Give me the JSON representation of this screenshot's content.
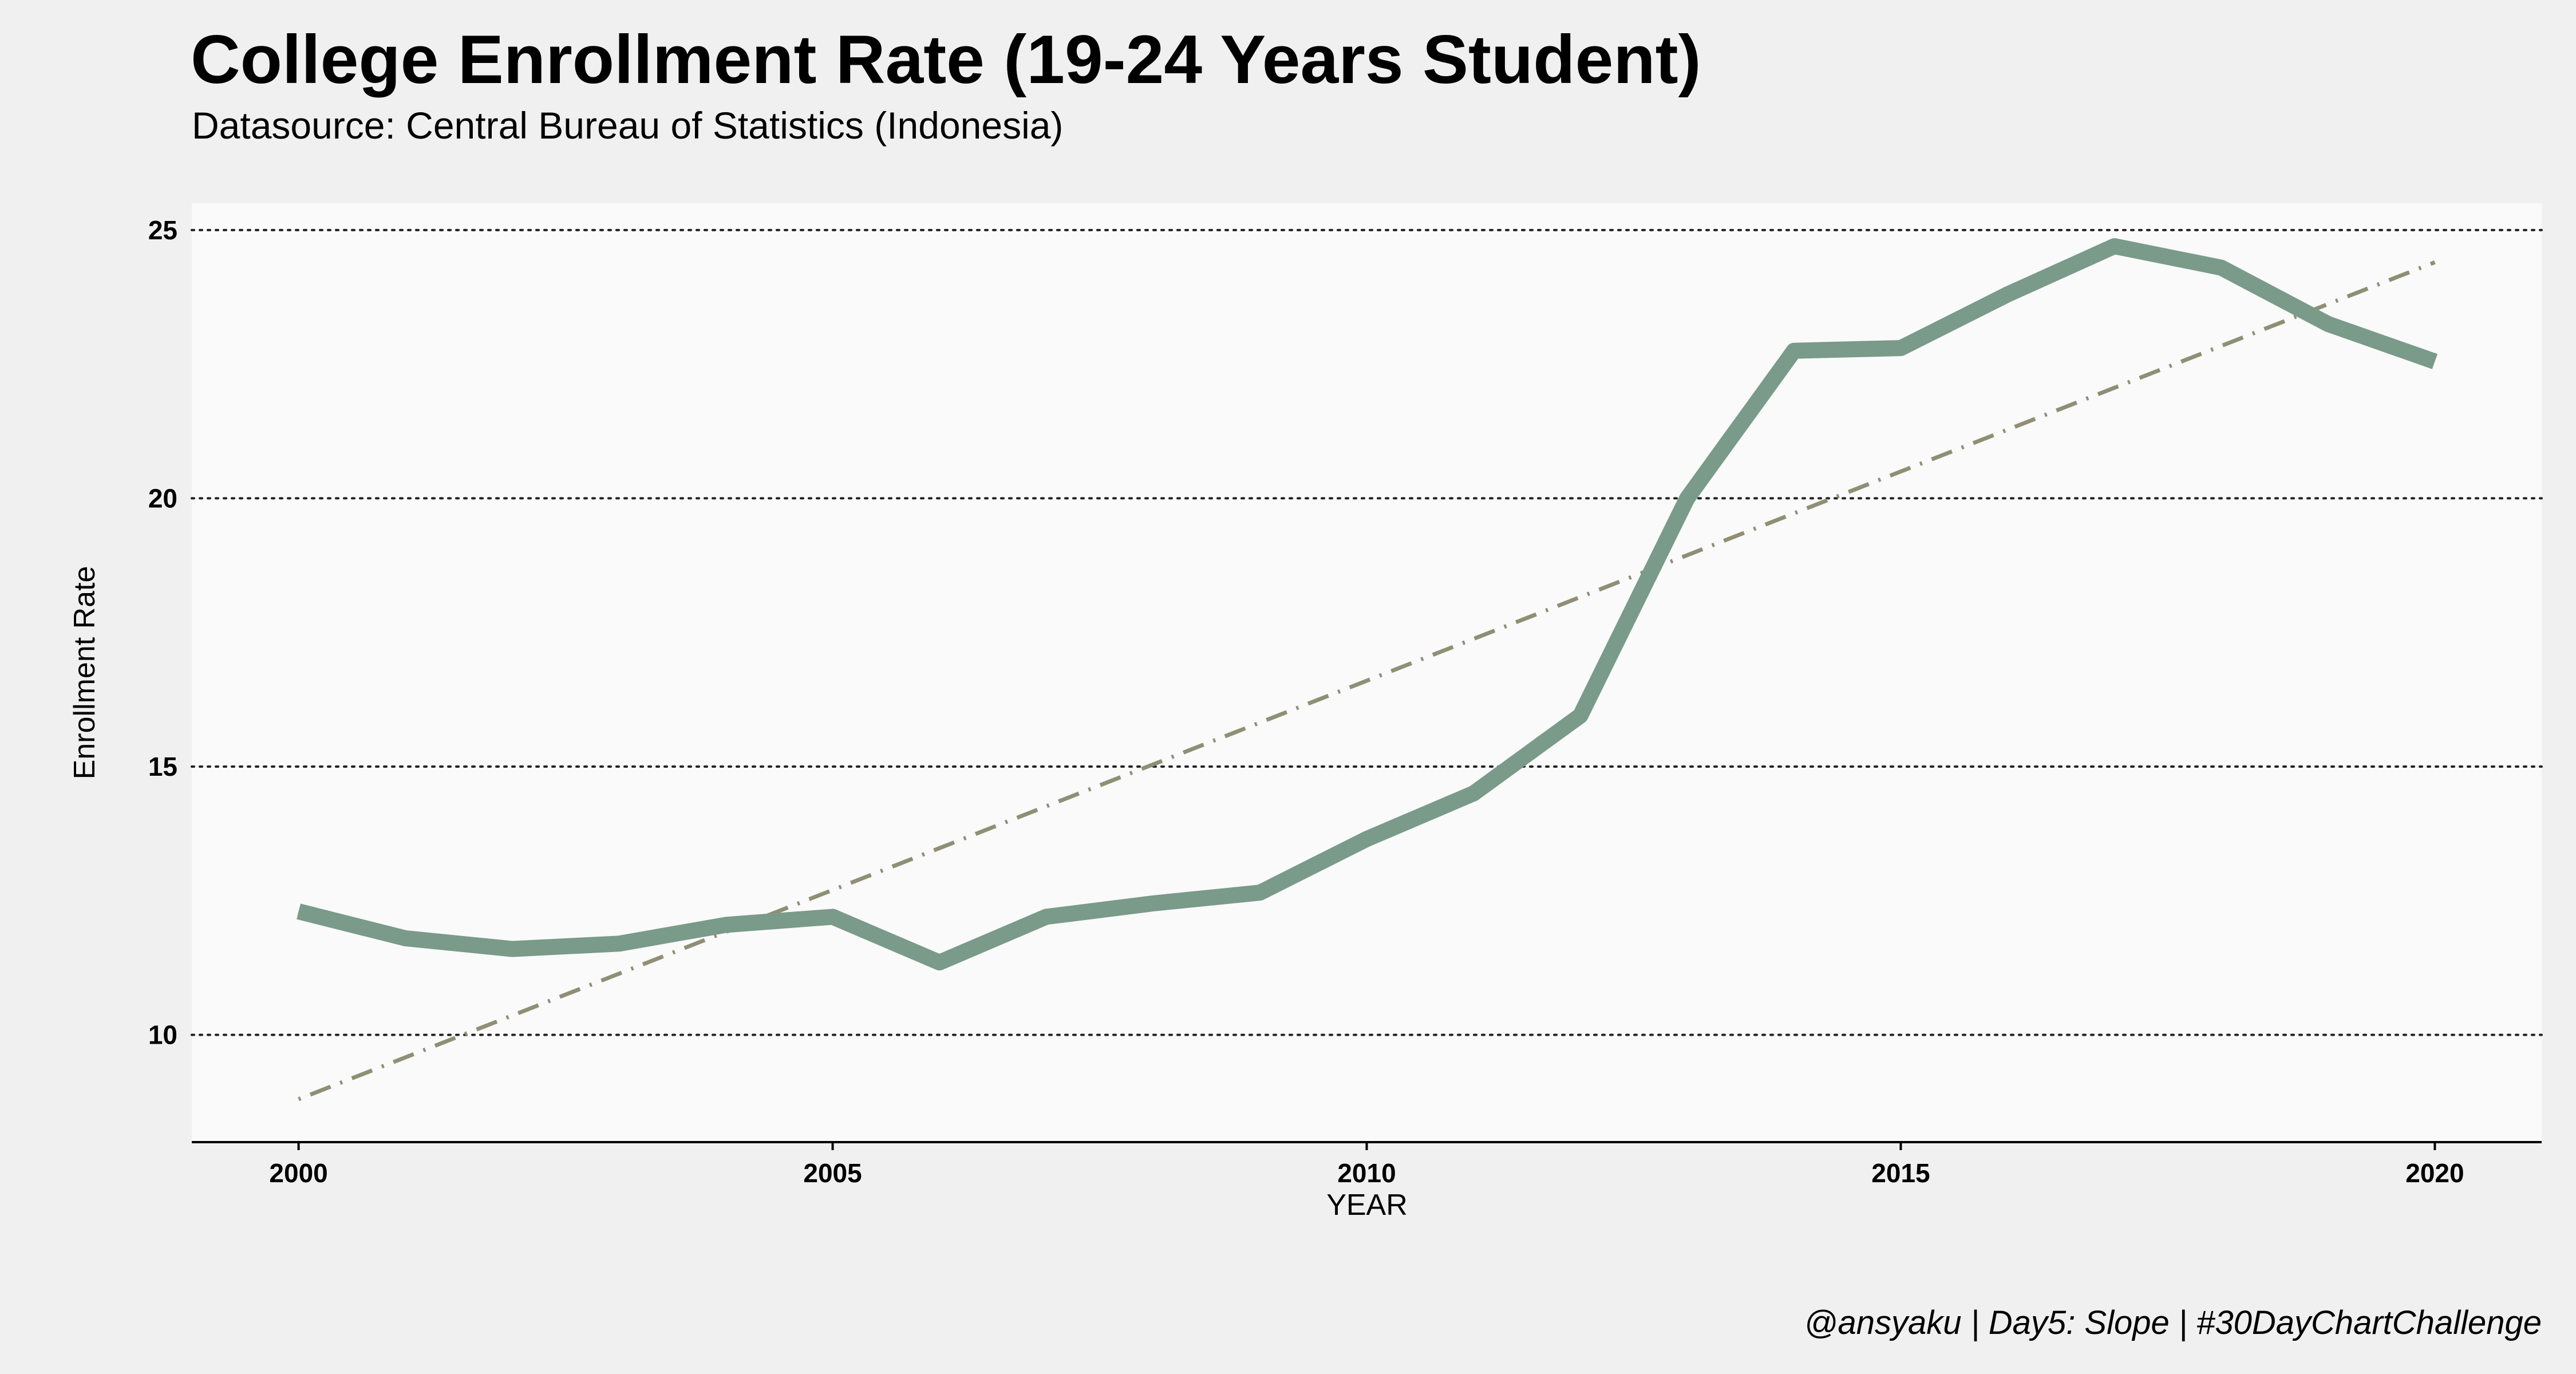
{
  "chart_data": {
    "type": "line",
    "title": "College Enrollment Rate (19-24 Years Student)",
    "subtitle": "Datasource: Central Bureau of Statistics (Indonesia)",
    "xlabel": "YEAR",
    "ylabel": "Enrollment Rate",
    "caption": "@ansyaku | Day5: Slope | #30DayChartChallenge",
    "x": [
      2000,
      2001,
      2002,
      2003,
      2004,
      2005,
      2006,
      2007,
      2008,
      2009,
      2010,
      2011,
      2012,
      2013,
      2014,
      2015,
      2016,
      2017,
      2018,
      2019,
      2020
    ],
    "series": [
      {
        "values": [
          12.3,
          11.8,
          11.6,
          11.7,
          12.05,
          12.2,
          11.35,
          12.2,
          12.45,
          12.65,
          13.65,
          14.5,
          15.95,
          20.0,
          22.75,
          22.8,
          23.8,
          24.7,
          24.3,
          23.25,
          22.55
        ],
        "color": "#7a9a8a"
      }
    ],
    "trendline": {
      "style": "dotdash",
      "color": "#8f8f75",
      "start": [
        2000,
        8.8
      ],
      "end": [
        2020,
        24.4
      ]
    },
    "xlim": [
      1999,
      2021
    ],
    "ylim": [
      8,
      25.5
    ],
    "xticks": [
      2000,
      2005,
      2010,
      2015,
      2020
    ],
    "yticks": [
      10,
      15,
      20,
      25
    ],
    "grid": "horizontal dotted",
    "panel_color": "#fafafa",
    "background_color": "#f0f0f0"
  }
}
